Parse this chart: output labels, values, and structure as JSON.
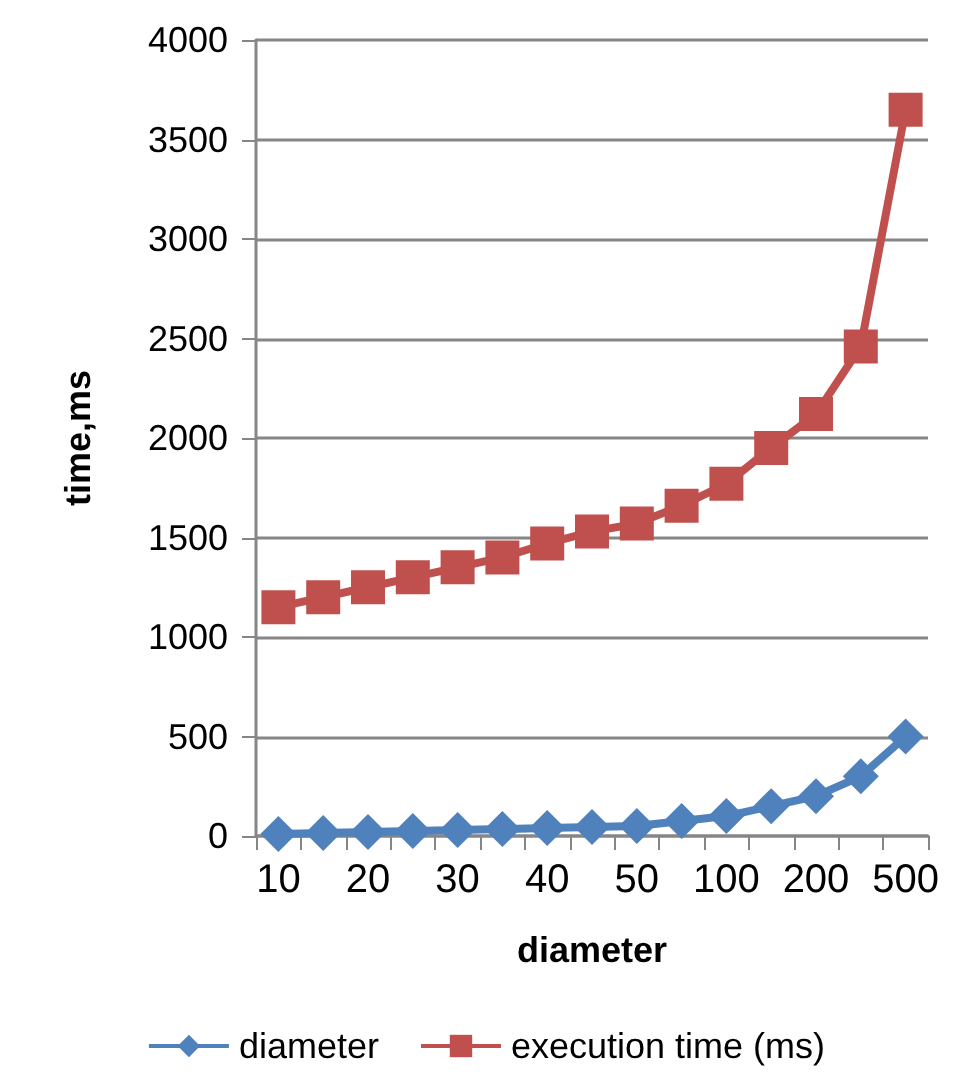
{
  "chart_data": {
    "type": "line",
    "xlabel": "diameter",
    "ylabel": "time,ms",
    "categories": [
      "10",
      null,
      "20",
      null,
      "30",
      null,
      "40",
      null,
      "50",
      null,
      "100",
      null,
      "200",
      null,
      "500"
    ],
    "series": [
      {
        "name": "diameter",
        "color": "#4f81bd",
        "marker": "diamond",
        "values": [
          10,
          15,
          20,
          25,
          30,
          35,
          40,
          45,
          50,
          75,
          100,
          150,
          200,
          300,
          500
        ]
      },
      {
        "name": "execution time (ms)",
        "color": "#c0504d",
        "marker": "square",
        "values": [
          1150,
          1200,
          1250,
          1300,
          1350,
          1400,
          1470,
          1530,
          1570,
          1660,
          1770,
          1950,
          2120,
          2460,
          3650
        ]
      }
    ],
    "ylim": [
      0,
      4000
    ],
    "yticks": [
      0,
      500,
      1000,
      1500,
      2000,
      2500,
      3000,
      3500,
      4000
    ],
    "grid": "y",
    "legend": "bottom"
  }
}
